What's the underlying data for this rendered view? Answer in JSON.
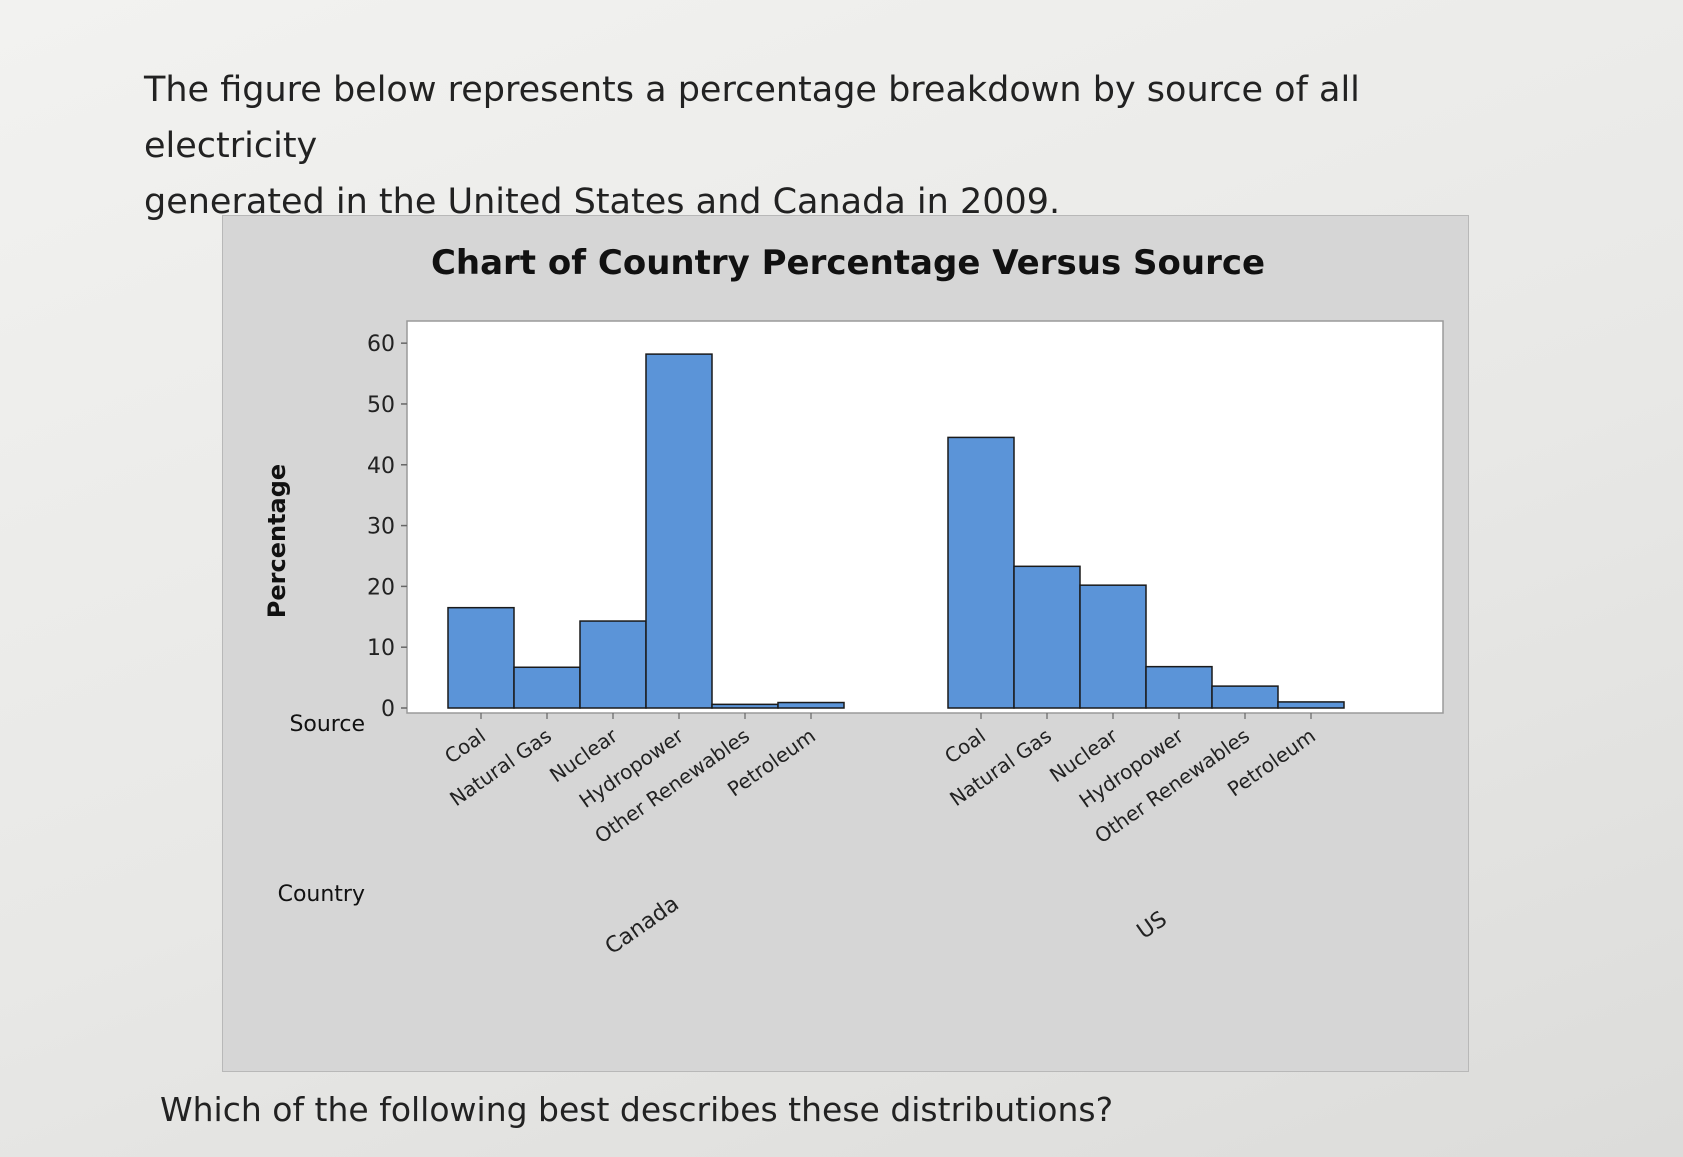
{
  "question": {
    "intro_line1": "The figure below represents a percentage breakdown by source of all electricity",
    "intro_line2": "generated in the United States and Canada in 2009.",
    "follow_up": "Which of the following best describes these distributions?"
  },
  "colors": {
    "bar_fill": "#5b94d8",
    "bar_stroke": "#1a1a1a",
    "panel_bg": "#d6d6d6",
    "plot_bg": "#ffffff"
  },
  "chart_data": {
    "type": "bar",
    "title": "Chart of Country Percentage Versus Source",
    "ylabel": "Percentage",
    "row_labels": {
      "source": "Source",
      "country": "Country"
    },
    "ylim": [
      0,
      62
    ],
    "yticks": [
      0,
      10,
      20,
      30,
      40,
      50,
      60
    ],
    "grid": false,
    "groups": [
      {
        "country": "Canada",
        "categories": [
          "Coal",
          "Natural Gas",
          "Nuclear",
          "Hydropower",
          "Other Renewables",
          "Petroleum"
        ],
        "values": [
          16.5,
          6.7,
          14.3,
          58.2,
          0.6,
          0.9
        ]
      },
      {
        "country": "US",
        "categories": [
          "Coal",
          "Natural Gas",
          "Nuclear",
          "Hydropower",
          "Other Renewables",
          "Petroleum"
        ],
        "values": [
          44.5,
          23.3,
          20.2,
          6.8,
          3.6,
          1.0
        ]
      }
    ]
  }
}
